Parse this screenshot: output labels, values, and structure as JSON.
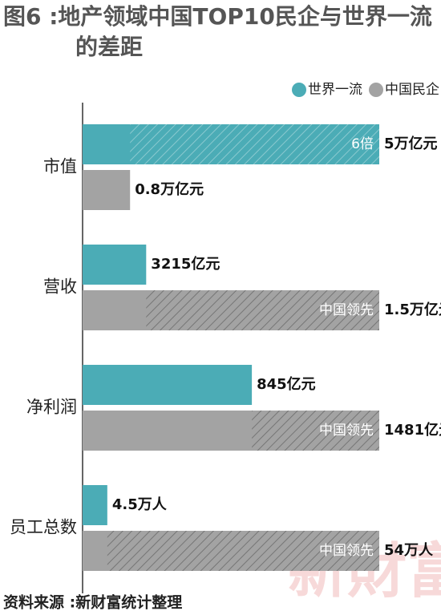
{
  "chart_data": {
    "type": "bar",
    "title": "图6 :地产领域中国TOP10民企与世界一流的差距",
    "categories": [
      "市值",
      "营收",
      "净利润",
      "员工总数"
    ],
    "series": [
      {
        "name": "世界一流",
        "color": "#4bacb6",
        "values": [
          5,
          3215,
          845,
          4.5
        ],
        "value_labels": [
          "5万亿元",
          "3215亿元",
          "845亿元",
          "4.5万人"
        ]
      },
      {
        "name": "中国民企",
        "color": "#a3a3a3",
        "values": [
          0.8,
          15000,
          1481,
          54
        ],
        "value_labels": [
          "0.8万亿元",
          "1.5万亿元",
          "1481亿元",
          "54万人"
        ]
      }
    ],
    "annotations": [
      "6倍",
      "中国领先",
      "中国领先",
      "中国领先"
    ],
    "legend": "top-right",
    "watermark": "新財富",
    "source": "资料来源 :新财富统计整理"
  }
}
